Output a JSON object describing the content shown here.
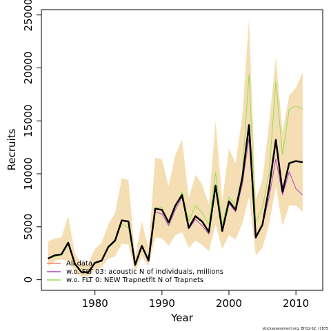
{
  "chart_data": {
    "type": "line",
    "xlabel": "Year",
    "ylabel": "Recruits",
    "xlim": [
      1972,
      2014
    ],
    "ylim": [
      -1000,
      25500
    ],
    "x_ticks": [
      1980,
      1990,
      2000,
      2010
    ],
    "y_ticks": [
      0,
      5000,
      10000,
      15000,
      20000,
      25000
    ],
    "legend_position": "bottom-left",
    "x": [
      1973,
      1974,
      1975,
      1976,
      1977,
      1978,
      1979,
      1980,
      1981,
      1982,
      1983,
      1984,
      1985,
      1986,
      1987,
      1988,
      1989,
      1990,
      1991,
      1992,
      1993,
      1994,
      1995,
      1996,
      1997,
      1998,
      1999,
      2000,
      2001,
      2002,
      2003,
      2004,
      2005,
      2006,
      2007,
      2008,
      2009,
      2010,
      2011
    ],
    "band": {
      "color": "#f5deb3",
      "lower": [
        1300,
        1800,
        1900,
        1800,
        700,
        300,
        300,
        900,
        1200,
        2000,
        2200,
        3400,
        3300,
        800,
        2200,
        1300,
        4000,
        3900,
        3200,
        4200,
        4500,
        3000,
        3700,
        3300,
        2700,
        5200,
        2900,
        4200,
        3800,
        5300,
        7800,
        2300,
        3000,
        5300,
        8800,
        5100,
        7000,
        7000,
        6400
      ],
      "upper": [
        3600,
        3900,
        4000,
        6000,
        2500,
        1500,
        1500,
        2900,
        3500,
        5200,
        6300,
        9600,
        9400,
        2200,
        5500,
        3000,
        11500,
        11400,
        8800,
        11800,
        13200,
        7700,
        9900,
        9000,
        7100,
        15000,
        7400,
        12400,
        11000,
        15500,
        24600,
        7600,
        9400,
        14800,
        21000,
        14000,
        17400,
        18100,
        19600
      ]
    },
    "series": [
      {
        "name": "All data",
        "color": "#ff7f66",
        "width": 1.5,
        "values": [
          2000,
          2300,
          2400,
          3500,
          1500,
          700,
          700,
          1600,
          1800,
          3100,
          3700,
          5600,
          5500,
          1400,
          3200,
          1800,
          6700,
          6600,
          5400,
          7000,
          8000,
          4900,
          6000,
          5500,
          4500,
          8900,
          4600,
          7400,
          6600,
          9600,
          14600,
          4000,
          5200,
          8700,
          13200,
          8300,
          11000,
          11200,
          11100
        ]
      },
      {
        "name": "w.o. FLT 03:   acoustic    N of individuals, millions",
        "color": "#b040d0",
        "width": 1,
        "values": [
          2000,
          2300,
          2400,
          3500,
          1500,
          700,
          700,
          1600,
          1800,
          3100,
          3700,
          5600,
          5500,
          1400,
          3200,
          1800,
          6400,
          6200,
          5100,
          6600,
          7800,
          4800,
          5700,
          5100,
          4300,
          8800,
          4600,
          7200,
          6400,
          9000,
          13400,
          3900,
          5100,
          7800,
          11400,
          8000,
          10200,
          8600,
          8000
        ]
      },
      {
        "name": "w.o. FLT 0: NEW Trapnetflt    N of Trapnets",
        "color": "#90e050",
        "width": 1,
        "values": [
          2000,
          2200,
          2300,
          3300,
          1400,
          700,
          700,
          1500,
          1800,
          3000,
          3600,
          5300,
          4900,
          1300,
          3100,
          1900,
          6800,
          6800,
          5100,
          6800,
          8300,
          5500,
          7000,
          6300,
          5200,
          10100,
          5200,
          7800,
          7000,
          10000,
          19400,
          5400,
          6800,
          10100,
          18700,
          11800,
          16100,
          16400,
          16100
        ]
      }
    ],
    "overlay": {
      "color": "#000000",
      "width": 2.5
    }
  },
  "footer": "stockassessment.org, BH12-S2, r1875"
}
